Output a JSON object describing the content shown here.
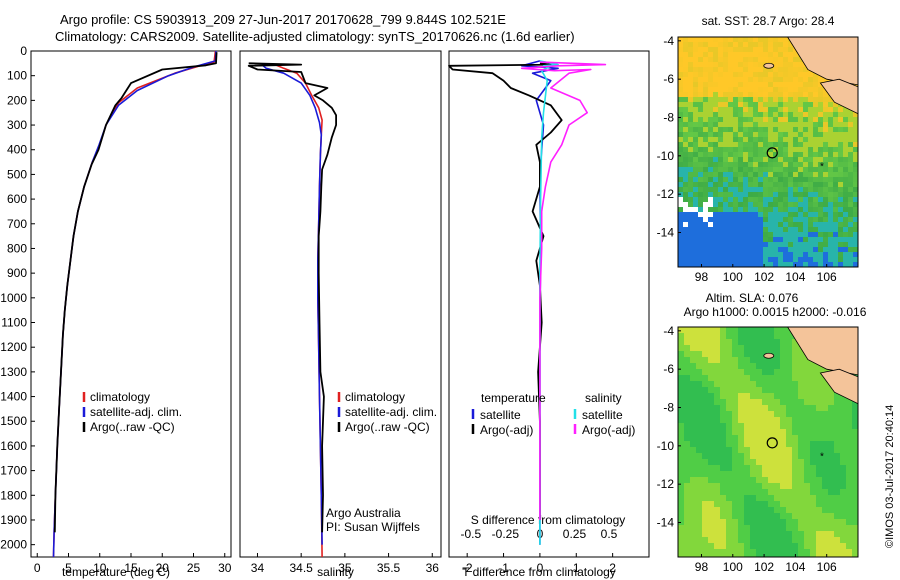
{
  "header": {
    "line1": "Argo profile: CS 5903913_209 27-Jun-2017 20170628_799 9.844S 102.521E",
    "line2": "Climatology: CARS2009. Satellite-adjusted climatology: synTS_20170626.nc (1.6d earlier)"
  },
  "credits": {
    "program": "Argo Australia",
    "pi": "PI: Susan Wijffels",
    "imos": "©IMOS 03-Jul-2017 20:40:14"
  },
  "colors": {
    "climatology": "#e02020",
    "satellite": "#1a1ad8",
    "argo": "#000000",
    "sal_satellite": "#22e0e8",
    "sal_argo": "#ff20ff",
    "land": "#f4c49a"
  },
  "chart_data": [
    {
      "type": "line",
      "id": "temperature",
      "xlabel": "temperature (deg C)",
      "ylabel": "",
      "xlim": [
        -1,
        31
      ],
      "ylim": [
        2050,
        0
      ],
      "xticks": [
        0,
        5,
        10,
        15,
        20,
        25,
        30
      ],
      "yticks": [
        0,
        100,
        200,
        300,
        400,
        500,
        600,
        700,
        800,
        900,
        1000,
        1100,
        1200,
        1300,
        1400,
        1500,
        1600,
        1700,
        1800,
        1900,
        2000
      ],
      "legend": [
        "climatology",
        "satellite-adj. clim.",
        "Argo(..raw -QC)"
      ],
      "series": [
        {
          "name": "climatology",
          "points": [
            [
              28.5,
              0
            ],
            [
              28.3,
              45
            ],
            [
              26,
              60
            ],
            [
              22,
              90
            ],
            [
              16,
              150
            ],
            [
              13,
              210
            ],
            [
              11,
              300
            ],
            [
              10,
              380
            ],
            [
              8.8,
              450
            ],
            [
              7.5,
              550
            ],
            [
              6.5,
              650
            ],
            [
              5.8,
              750
            ],
            [
              5.3,
              850
            ],
            [
              4.8,
              950
            ],
            [
              4.4,
              1050
            ],
            [
              4.1,
              1150
            ],
            [
              3.8,
              1300
            ],
            [
              3.5,
              1450
            ],
            [
              3.2,
              1600
            ],
            [
              2.9,
              1800
            ],
            [
              2.7,
              1950
            ],
            [
              2.6,
              2050
            ]
          ]
        },
        {
          "name": "satellite-adj. clim.",
          "points": [
            [
              28.6,
              0
            ],
            [
              28.5,
              40
            ],
            [
              25,
              65
            ],
            [
              21,
              100
            ],
            [
              16,
              160
            ],
            [
              13,
              220
            ],
            [
              11,
              300
            ],
            [
              9.9,
              380
            ],
            [
              8.8,
              450
            ],
            [
              7.5,
              550
            ],
            [
              6.5,
              650
            ],
            [
              5.8,
              750
            ],
            [
              5.3,
              850
            ],
            [
              4.8,
              950
            ],
            [
              4.4,
              1050
            ],
            [
              4.1,
              1150
            ],
            [
              3.8,
              1300
            ],
            [
              3.5,
              1450
            ],
            [
              3.2,
              1600
            ],
            [
              2.9,
              1800
            ],
            [
              2.7,
              1950
            ],
            [
              2.6,
              2050
            ]
          ]
        },
        {
          "name": "Argo(..raw -QC)",
          "points": [
            [
              28.7,
              5
            ],
            [
              28.6,
              50
            ],
            [
              27,
              58
            ],
            [
              20,
              75
            ],
            [
              15,
              130
            ],
            [
              13.5,
              190
            ],
            [
              12.5,
              220
            ],
            [
              11,
              300
            ],
            [
              9.8,
              400
            ],
            [
              8.7,
              460
            ],
            [
              7.5,
              550
            ],
            [
              6.5,
              650
            ],
            [
              5.8,
              750
            ],
            [
              5.3,
              850
            ],
            [
              4.8,
              950
            ],
            [
              4.4,
              1050
            ],
            [
              4.1,
              1150
            ],
            [
              3.8,
              1300
            ],
            [
              3.5,
              1450
            ],
            [
              3.2,
              1600
            ],
            [
              2.9,
              1800
            ],
            [
              2.8,
              1950
            ]
          ]
        }
      ]
    },
    {
      "type": "line",
      "id": "salinity",
      "xlabel": "salinity",
      "xlim": [
        33.8,
        36.1
      ],
      "ylim": [
        2050,
        0
      ],
      "xticks": [
        34,
        34.5,
        35,
        35.5,
        36
      ],
      "legend": [
        "climatology",
        "satellite-adj. clim.",
        "Argo(..raw -QC)"
      ],
      "series": [
        {
          "name": "climatology",
          "points": [
            [
              34.2,
              55
            ],
            [
              34.3,
              70
            ],
            [
              34.45,
              90
            ],
            [
              34.55,
              130
            ],
            [
              34.62,
              180
            ],
            [
              34.7,
              230
            ],
            [
              34.74,
              280
            ],
            [
              34.73,
              340
            ],
            [
              34.72,
              420
            ],
            [
              34.71,
              550
            ],
            [
              34.7,
              700
            ],
            [
              34.69,
              850
            ],
            [
              34.69,
              1000
            ],
            [
              34.7,
              1200
            ],
            [
              34.71,
              1400
            ],
            [
              34.72,
              1600
            ],
            [
              34.73,
              1800
            ],
            [
              34.74,
              2050
            ]
          ]
        },
        {
          "name": "satellite-adj. clim.",
          "points": [
            [
              34.05,
              55
            ],
            [
              34.1,
              70
            ],
            [
              34.3,
              90
            ],
            [
              34.5,
              130
            ],
            [
              34.6,
              180
            ],
            [
              34.66,
              230
            ],
            [
              34.71,
              290
            ],
            [
              34.73,
              340
            ],
            [
              34.72,
              420
            ],
            [
              34.71,
              550
            ],
            [
              34.7,
              700
            ],
            [
              34.69,
              850
            ],
            [
              34.69,
              1000
            ],
            [
              34.7,
              1200
            ],
            [
              34.71,
              1400
            ],
            [
              34.72,
              1600
            ],
            [
              34.73,
              1800
            ],
            [
              34.74,
              2000
            ]
          ]
        },
        {
          "name": "Argo(..raw -QC)",
          "points": [
            [
              33.9,
              50
            ],
            [
              34.5,
              55
            ],
            [
              33.9,
              60
            ],
            [
              34.0,
              75
            ],
            [
              34.5,
              85
            ],
            [
              34.55,
              130
            ],
            [
              34.8,
              150
            ],
            [
              34.65,
              180
            ],
            [
              34.75,
              200
            ],
            [
              34.85,
              230
            ],
            [
              34.9,
              260
            ],
            [
              34.9,
              300
            ],
            [
              34.85,
              350
            ],
            [
              34.8,
              420
            ],
            [
              34.74,
              480
            ],
            [
              34.73,
              550
            ],
            [
              34.72,
              650
            ],
            [
              34.7,
              750
            ],
            [
              34.7,
              900
            ],
            [
              34.71,
              1100
            ],
            [
              34.72,
              1300
            ],
            [
              34.76,
              1400
            ],
            [
              34.75,
              1500
            ],
            [
              34.74,
              1600
            ],
            [
              34.75,
              1800
            ],
            [
              34.74,
              1950
            ]
          ]
        }
      ]
    },
    {
      "type": "line",
      "id": "difference",
      "xlabel": "T difference from climatology",
      "top_label": "S difference from climatology",
      "xlim": [
        -2.5,
        3
      ],
      "ylim": [
        2050,
        0
      ],
      "xticks": [
        -2,
        -1,
        0,
        1,
        2
      ],
      "sticks": [
        "-0.5",
        "-0.25",
        "0",
        "0.25",
        "0.5"
      ],
      "legend": {
        "temperature": [
          "satellite",
          "Argo(-adj)"
        ],
        "salinity": [
          "satellite",
          "Argo(-adj)"
        ],
        "temperature_title": "temperature",
        "salinity_title": "salinity"
      },
      "series": [
        {
          "name": "T satellite",
          "points": [
            [
              0,
              40
            ],
            [
              -0.5,
              60
            ],
            [
              0.5,
              70
            ],
            [
              -0.2,
              90
            ],
            [
              0.3,
              120
            ],
            [
              -0.1,
              200
            ],
            [
              0.1,
              300
            ],
            [
              0,
              500
            ],
            [
              0.02,
              800
            ],
            [
              0,
              1200
            ],
            [
              0,
              1600
            ],
            [
              0,
              2000
            ]
          ]
        },
        {
          "name": "T Argo(-adj)",
          "points": [
            [
              0,
              50
            ],
            [
              0.3,
              55
            ],
            [
              -2.5,
              60
            ],
            [
              -2.4,
              75
            ],
            [
              -1.3,
              90
            ],
            [
              -1.0,
              120
            ],
            [
              -0.8,
              150
            ],
            [
              -0.3,
              180
            ],
            [
              0.3,
              220
            ],
            [
              0.6,
              280
            ],
            [
              0.3,
              330
            ],
            [
              -0.1,
              380
            ],
            [
              0,
              450
            ],
            [
              0,
              550
            ],
            [
              -0.2,
              650
            ],
            [
              0.1,
              750
            ],
            [
              -0.1,
              850
            ],
            [
              0,
              950
            ],
            [
              0.05,
              1100
            ],
            [
              -0.05,
              1300
            ],
            [
              0,
              1500
            ],
            [
              0,
              1700
            ],
            [
              0,
              1900
            ]
          ]
        },
        {
          "name": "S satellite",
          "points": [
            [
              0,
              40
            ],
            [
              0.5,
              55
            ],
            [
              0.1,
              60
            ],
            [
              0.25,
              65
            ],
            [
              0.05,
              80
            ],
            [
              0.2,
              120
            ],
            [
              0.1,
              250
            ],
            [
              0.05,
              350
            ],
            [
              0.02,
              600
            ],
            [
              0,
              900
            ],
            [
              0,
              1300
            ],
            [
              0,
              1700
            ],
            [
              0,
              2000
            ]
          ]
        },
        {
          "name": "S Argo(-adj)",
          "points": [
            [
              0,
              45
            ],
            [
              1.8,
              55
            ],
            [
              0.5,
              60
            ],
            [
              -0.5,
              70
            ],
            [
              0.4,
              80
            ],
            [
              1.4,
              75
            ],
            [
              0.8,
              90
            ],
            [
              0.3,
              150
            ],
            [
              1.1,
              200
            ],
            [
              1.3,
              250
            ],
            [
              0.8,
              300
            ],
            [
              0.6,
              380
            ],
            [
              0.3,
              450
            ],
            [
              0.15,
              550
            ],
            [
              0.05,
              650
            ],
            [
              0.05,
              800
            ],
            [
              0,
              1000
            ],
            [
              0,
              1300
            ],
            [
              0,
              1600
            ],
            [
              0,
              1900
            ]
          ]
        }
      ]
    },
    {
      "type": "heatmap",
      "id": "sst-map",
      "title": "sat. SST: 28.7 Argo: 28.4",
      "xlim": [
        96.5,
        108
      ],
      "ylim": [
        -15.8,
        -3.8
      ],
      "xticks": [
        98,
        100,
        102,
        104,
        106
      ],
      "yticks": [
        -4,
        -6,
        -8,
        -10,
        -12,
        -14
      ],
      "profile_marker": [
        102.521,
        -9.844
      ],
      "secondary_marker": [
        105.7,
        -10.5
      ]
    },
    {
      "type": "heatmap",
      "id": "sla-map",
      "title": "Altim. SLA: 0.076",
      "subtitle": "Argo h1000: 0.0015 h2000: -0.016",
      "xlim": [
        96.5,
        108
      ],
      "ylim": [
        -15.8,
        -3.8
      ],
      "xticks": [
        98,
        100,
        102,
        104,
        106
      ],
      "yticks": [
        -4,
        -6,
        -8,
        -10,
        -12,
        -14
      ],
      "profile_marker": [
        102.521,
        -9.844
      ],
      "secondary_marker": [
        105.7,
        -10.5
      ]
    }
  ]
}
